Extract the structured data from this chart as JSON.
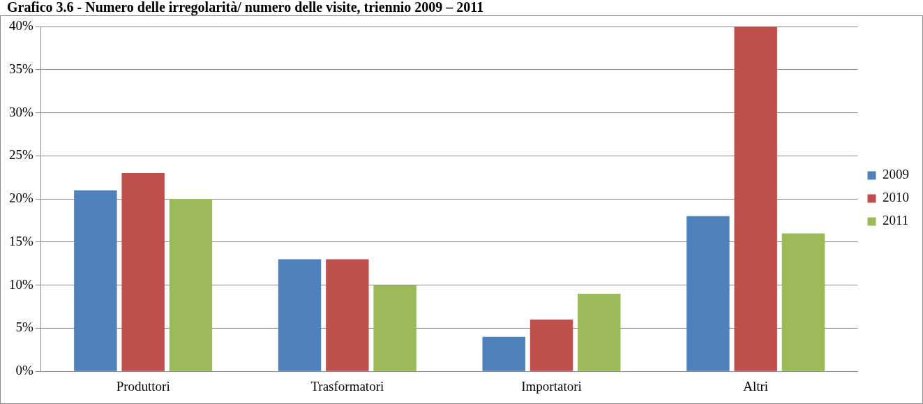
{
  "chart_data": {
    "type": "bar",
    "title": "Grafico 3.6 - Numero delle irregolarità/ numero delle visite, triennio 2009 – 2011",
    "categories": [
      "Produttori",
      "Trasformatori",
      "Importatori",
      "Altri"
    ],
    "series": [
      {
        "name": "2009",
        "color": "#4f81bd",
        "values": [
          21,
          13,
          4,
          18
        ]
      },
      {
        "name": "2010",
        "color": "#c0504d",
        "values": [
          23,
          13,
          6,
          40
        ]
      },
      {
        "name": "2011",
        "color": "#9bbb59",
        "values": [
          20,
          10,
          9,
          16
        ]
      }
    ],
    "ylim": [
      0,
      40
    ],
    "yticks": [
      {
        "value": 0,
        "label": "0%"
      },
      {
        "value": 5,
        "label": "5%"
      },
      {
        "value": 10,
        "label": "10%"
      },
      {
        "value": 15,
        "label": "15%"
      },
      {
        "value": 20,
        "label": "20%"
      },
      {
        "value": 25,
        "label": "25%"
      },
      {
        "value": 30,
        "label": "30%"
      },
      {
        "value": 35,
        "label": "35%"
      },
      {
        "value": 40,
        "label": "40%"
      }
    ],
    "grid": "y",
    "legend": "right"
  }
}
